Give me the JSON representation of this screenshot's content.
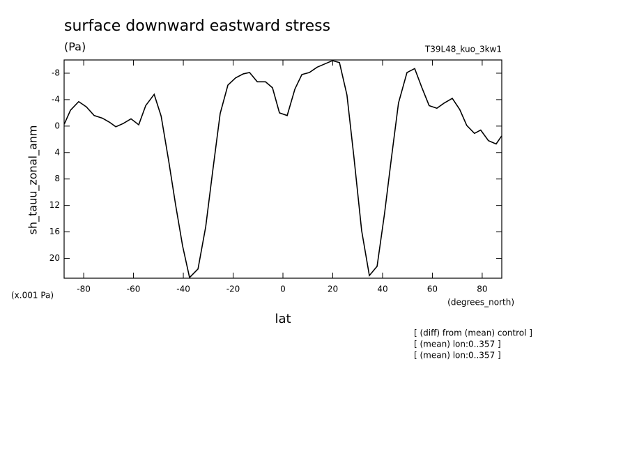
{
  "chart_data": {
    "type": "line",
    "title": "surface downward eastward stress",
    "units": "(Pa)",
    "dataset": "T39L48_kuo_3kw1",
    "y_label": "sh_tauu_zonal_anm",
    "y_units": "(x.001 Pa)",
    "x_label": "lat",
    "x_units": "(degrees_north)",
    "notes": [
      "[ (diff) from (mean) control ]",
      "[ (mean) lon:0..357 ]",
      "[ (mean) lon:0..357 ]"
    ],
    "color": "#000000",
    "y_inverted": true,
    "xlim": [
      -87.86,
      87.86
    ],
    "xticks": [
      -80,
      -60,
      -40,
      -20,
      0,
      20,
      40,
      60,
      80
    ],
    "ylim": [
      -10,
      23
    ],
    "yticks": [
      -8,
      -4,
      0,
      4,
      8,
      12,
      16,
      20
    ],
    "x": [
      -87.8,
      -85.3,
      -82.0,
      -78.9,
      -75.8,
      -72.5,
      -69.7,
      -67.1,
      -64.1,
      -61.0,
      -57.9,
      -55.1,
      -51.7,
      -48.9,
      -45.9,
      -43.1,
      -40.3,
      -37.5,
      -34.1,
      -31.0,
      -28.2,
      -25.2,
      -22.1,
      -19.0,
      -15.9,
      -13.4,
      -10.3,
      -7.0,
      -4.2,
      -1.4,
      1.7,
      4.8,
      7.6,
      10.6,
      13.7,
      16.8,
      19.9,
      22.7,
      25.7,
      28.5,
      31.6,
      34.7,
      37.8,
      40.8,
      43.6,
      46.4,
      49.8,
      52.9,
      55.7,
      58.7,
      61.8,
      64.8,
      68.0,
      71.0,
      73.8,
      76.9,
      79.4,
      82.5,
      85.6,
      87.8
    ],
    "values": [
      -0.3,
      -2.4,
      -3.7,
      -2.9,
      -1.6,
      -1.2,
      -0.6,
      0.1,
      -0.4,
      -1.1,
      -0.2,
      -3.1,
      -4.8,
      -1.5,
      5.2,
      11.9,
      18.1,
      22.9,
      21.6,
      15.2,
      6.8,
      -1.9,
      -6.2,
      -7.3,
      -7.9,
      -8.1,
      -6.7,
      -6.7,
      -5.8,
      -2.0,
      -1.6,
      -5.6,
      -7.8,
      -8.1,
      -8.9,
      -9.4,
      -9.9,
      -9.6,
      -4.7,
      4.7,
      15.8,
      22.6,
      21.2,
      13.2,
      4.7,
      -3.5,
      -8.1,
      -8.7,
      -5.9,
      -3.1,
      -2.7,
      -3.5,
      -4.2,
      -2.5,
      -0.1,
      1.1,
      0.6,
      2.2,
      2.7,
      1.5
    ]
  }
}
